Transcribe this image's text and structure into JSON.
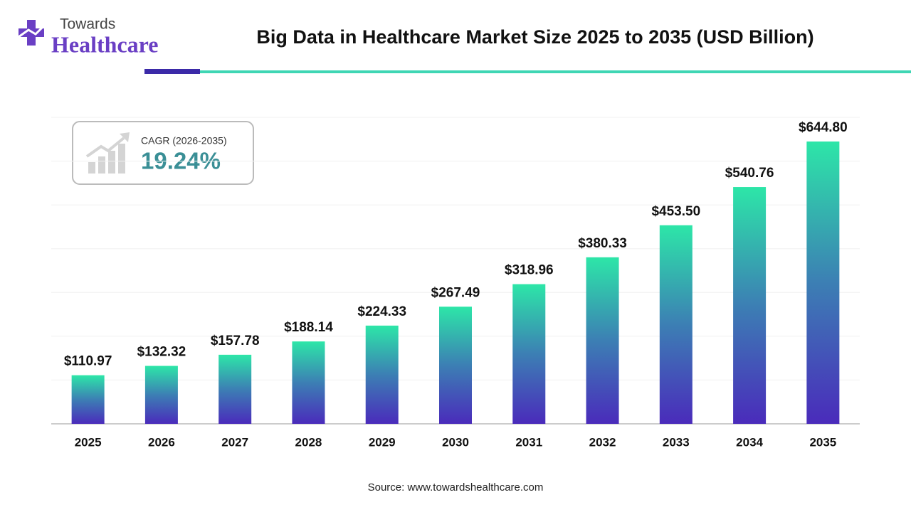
{
  "logo": {
    "line1": "Towards",
    "line2": "Healthcare"
  },
  "chart_data": {
    "type": "bar",
    "title": "Big Data in Healthcare Market Size 2025 to 2035 (USD Billion)",
    "categories": [
      "2025",
      "2026",
      "2027",
      "2028",
      "2029",
      "2030",
      "2031",
      "2032",
      "2033",
      "2034",
      "2035"
    ],
    "values": [
      110.97,
      132.32,
      157.78,
      188.14,
      224.33,
      267.49,
      318.96,
      380.33,
      453.5,
      540.76,
      644.8
    ],
    "value_labels": [
      "$110.97",
      "$132.32",
      "$157.78",
      "$188.14",
      "$224.33",
      "$267.49",
      "$318.96",
      "$380.33",
      "$453.50",
      "$540.76",
      "$644.80"
    ],
    "gradient": [
      "#2de6a8",
      "#3c7fb4",
      "#4a2bbb"
    ],
    "ylim": [
      0,
      700
    ],
    "yticks": [
      0,
      100,
      200,
      300,
      400,
      500,
      600,
      700
    ],
    "grid": true,
    "annotation": {
      "label": "CAGR (2026-2035)",
      "value": "19.24%"
    },
    "source": "Source: www.towardshealthcare.com"
  }
}
